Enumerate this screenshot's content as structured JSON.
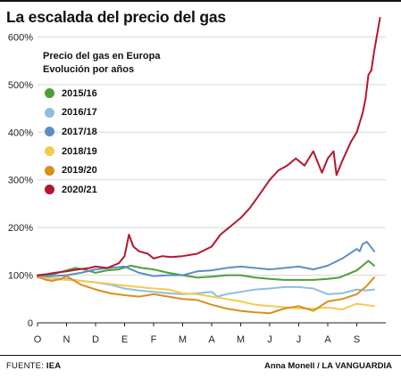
{
  "title": "La escalada del precio del gas",
  "footer": {
    "source_label": "FUENTE:",
    "source_value": "IEA",
    "credit": "Anna Monell / LA VANGUARDIA"
  },
  "chart_data": {
    "type": "line",
    "subtitle_line1": "Precio del gas en Europa",
    "subtitle_line2": "Evolución por años",
    "y_ticks": [
      "0",
      "100%",
      "200%",
      "300%",
      "400%",
      "500%",
      "600%"
    ],
    "y_tick_values": [
      0,
      100,
      200,
      300,
      400,
      500,
      600
    ],
    "ylim": [
      0,
      640
    ],
    "x_ticks": [
      "O",
      "N",
      "D",
      "E",
      "F",
      "M",
      "A",
      "M",
      "J",
      "J",
      "A",
      "S"
    ],
    "grid": true,
    "legend_placement": "top-left",
    "series": [
      {
        "name": "2015/16",
        "color": "#4f9e3a",
        "x": [
          0,
          0.3,
          0.6,
          1,
          1.3,
          1.6,
          2,
          2.4,
          2.8,
          3.2,
          3.6,
          4,
          4.5,
          5,
          5.5,
          6,
          6.5,
          7,
          7.5,
          8,
          8.5,
          9,
          9.5,
          10,
          10.4,
          10.8,
          11,
          11.2,
          11.4,
          11.6
        ],
        "values": [
          97,
          100,
          103,
          110,
          115,
          112,
          105,
          110,
          112,
          120,
          115,
          112,
          105,
          100,
          95,
          97,
          100,
          100,
          95,
          92,
          90,
          90,
          90,
          92,
          95,
          105,
          110,
          120,
          130,
          120
        ]
      },
      {
        "name": "2016/17",
        "color": "#8fbde0",
        "x": [
          0,
          0.5,
          1,
          1.5,
          2,
          2.5,
          3,
          3.5,
          4,
          4.5,
          5,
          5.5,
          6,
          6.2,
          6.5,
          7,
          7.5,
          8,
          8.5,
          9,
          9.5,
          10,
          10.5,
          11,
          11.3,
          11.6
        ],
        "values": [
          95,
          93,
          92,
          88,
          85,
          80,
          72,
          68,
          65,
          62,
          60,
          62,
          65,
          55,
          60,
          65,
          70,
          72,
          75,
          75,
          72,
          60,
          62,
          70,
          68,
          70
        ]
      },
      {
        "name": "2017/18",
        "color": "#5b8fc4",
        "x": [
          0,
          0.5,
          1,
          1.5,
          2,
          2.5,
          3,
          3.5,
          4,
          4.5,
          5,
          5.5,
          6,
          6.5,
          7,
          7.5,
          8,
          8.5,
          9,
          9.5,
          10,
          10.5,
          11,
          11.1,
          11.2,
          11.35,
          11.6
        ],
        "values": [
          97,
          98,
          100,
          105,
          112,
          115,
          118,
          105,
          98,
          100,
          100,
          108,
          110,
          115,
          118,
          115,
          112,
          115,
          118,
          112,
          120,
          135,
          155,
          150,
          165,
          170,
          150
        ]
      },
      {
        "name": "2018/19",
        "color": "#f2cc4e",
        "x": [
          0,
          0.5,
          1,
          1.5,
          2,
          2.5,
          3,
          3.5,
          4,
          4.5,
          5,
          5.5,
          6,
          6.5,
          7,
          7.5,
          8,
          8.5,
          9,
          9.5,
          10,
          10.5,
          11,
          11.6
        ],
        "values": [
          96,
          92,
          90,
          88,
          85,
          82,
          78,
          75,
          72,
          70,
          62,
          60,
          55,
          50,
          45,
          38,
          35,
          33,
          30,
          30,
          32,
          28,
          40,
          35
        ]
      },
      {
        "name": "2019/20",
        "color": "#d88f1e",
        "x": [
          0,
          0.3,
          0.5,
          0.8,
          1,
          1.5,
          2,
          2.5,
          3,
          3.5,
          4,
          4.5,
          5,
          5.5,
          6,
          6.5,
          7,
          7.5,
          8,
          8.5,
          9,
          9.5,
          10,
          10.5,
          11,
          11.3,
          11.6
        ],
        "values": [
          97,
          90,
          88,
          92,
          98,
          80,
          70,
          62,
          58,
          55,
          60,
          55,
          50,
          48,
          38,
          30,
          25,
          22,
          20,
          30,
          35,
          25,
          45,
          50,
          60,
          75,
          95
        ]
      },
      {
        "name": "2020/21",
        "color": "#b5172f",
        "x": [
          0,
          0.3,
          0.6,
          1,
          1.4,
          1.8,
          2,
          2.4,
          2.8,
          3,
          3.15,
          3.3,
          3.5,
          3.8,
          4,
          4.3,
          4.6,
          5,
          5.5,
          6,
          6.3,
          6.6,
          7,
          7.3,
          7.6,
          8,
          8.3,
          8.6,
          8.9,
          9,
          9.2,
          9.5,
          9.8,
          10,
          10.2,
          10.3,
          10.5,
          10.8,
          11,
          11.2,
          11.3,
          11.4,
          11.5,
          11.6,
          11.8
        ],
        "values": [
          100,
          102,
          105,
          108,
          112,
          115,
          118,
          115,
          125,
          140,
          185,
          160,
          150,
          145,
          135,
          140,
          138,
          140,
          145,
          160,
          185,
          200,
          220,
          240,
          265,
          300,
          320,
          330,
          345,
          340,
          330,
          360,
          315,
          345,
          360,
          310,
          340,
          380,
          400,
          440,
          470,
          520,
          530,
          570,
          640
        ]
      }
    ]
  }
}
